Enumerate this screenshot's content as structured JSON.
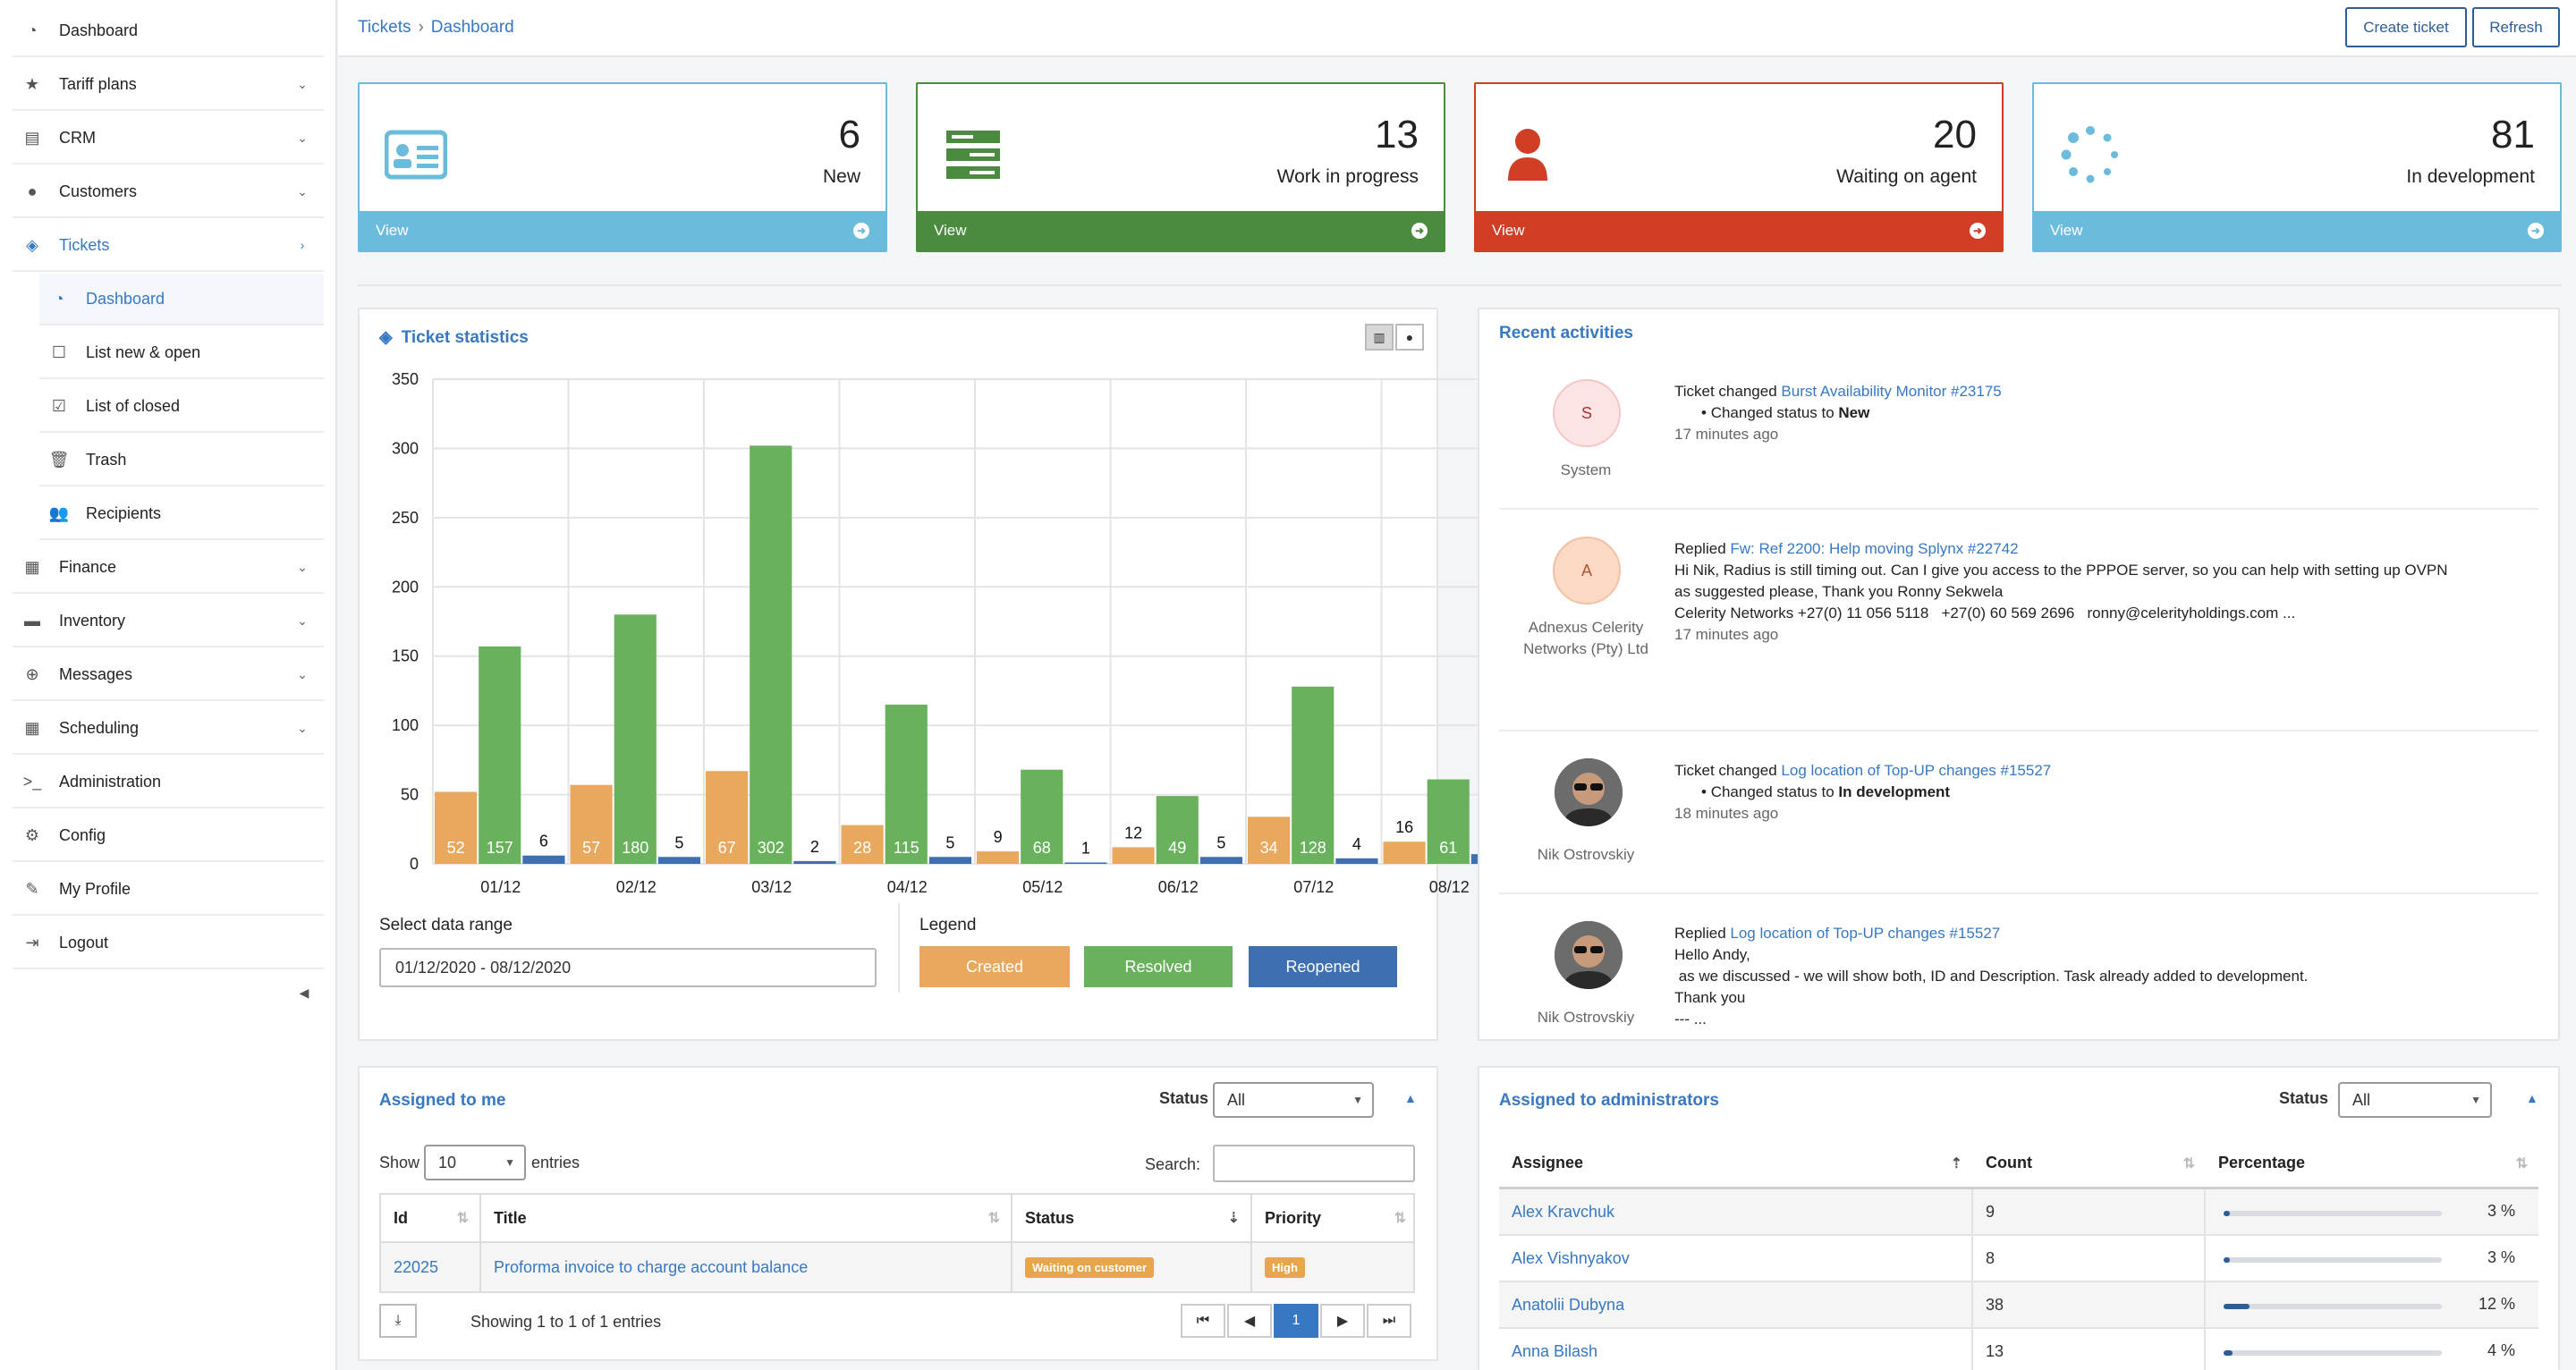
{
  "sidebar": {
    "items": [
      {
        "label": "Dashboard",
        "icon": "dashboard-icon",
        "chevron": false
      },
      {
        "label": "Tariff plans",
        "icon": "star-icon",
        "chevron": true
      },
      {
        "label": "CRM",
        "icon": "crm-icon",
        "chevron": true
      },
      {
        "label": "Customers",
        "icon": "user-icon",
        "chevron": true
      },
      {
        "label": "Tickets",
        "icon": "ticket-icon",
        "chevron": true,
        "active": true
      },
      {
        "label": "Finance",
        "icon": "calculator-icon",
        "chevron": true
      },
      {
        "label": "Inventory",
        "icon": "folder-icon",
        "chevron": true
      },
      {
        "label": "Messages",
        "icon": "globe-icon",
        "chevron": true
      },
      {
        "label": "Scheduling",
        "icon": "calendar-icon",
        "chevron": true
      },
      {
        "label": "Administration",
        "icon": "terminal-icon",
        "chevron": false
      },
      {
        "label": "Config",
        "icon": "gears-icon",
        "chevron": false
      },
      {
        "label": "My Profile",
        "icon": "pencil-icon",
        "chevron": false
      },
      {
        "label": "Logout",
        "icon": "logout-icon",
        "chevron": false
      }
    ],
    "ticket_subitems": [
      {
        "label": "Dashboard",
        "icon": "dashboard-icon",
        "active": true
      },
      {
        "label": "List new & open",
        "icon": "square-icon"
      },
      {
        "label": "List of closed",
        "icon": "checkbox-icon"
      },
      {
        "label": "Trash",
        "icon": "trash-icon"
      },
      {
        "label": "Recipients",
        "icon": "users-icon"
      }
    ]
  },
  "header": {
    "breadcrumb": [
      "Tickets",
      "Dashboard"
    ],
    "create_ticket": "Create ticket",
    "refresh": "Refresh"
  },
  "stats": [
    {
      "count": "6",
      "label": "New",
      "view": "View",
      "color": "#6bbcdc",
      "icon": "id-card-icon"
    },
    {
      "count": "13",
      "label": "Work in progress",
      "view": "View",
      "color": "#4a8b3f",
      "icon": "server-icon"
    },
    {
      "count": "20",
      "label": "Waiting on agent",
      "view": "View",
      "color": "#d03e26",
      "icon": "user-icon"
    },
    {
      "count": "81",
      "label": "In development",
      "view": "View",
      "color": "#6bbcdc",
      "icon": "spinner-icon"
    }
  ],
  "ticket_statistics": {
    "title": "Ticket statistics",
    "date_range_label": "Select data range",
    "date_range_value": "01/12/2020 - 08/12/2020",
    "legend_title": "Legend",
    "legend": [
      {
        "label": "Created",
        "color": "#e8a95e"
      },
      {
        "label": "Resolved",
        "color": "#6ab15e"
      },
      {
        "label": "Reopened",
        "color": "#3e6fb0"
      }
    ]
  },
  "chart_data": {
    "type": "bar",
    "categories": [
      "01/12",
      "02/12",
      "03/12",
      "04/12",
      "05/12",
      "06/12",
      "07/12",
      "08/12"
    ],
    "series": [
      {
        "name": "Created",
        "values": [
          52,
          57,
          67,
          28,
          9,
          12,
          34,
          16
        ]
      },
      {
        "name": "Resolved",
        "values": [
          157,
          180,
          302,
          115,
          68,
          49,
          128,
          61
        ]
      },
      {
        "name": "Reopened",
        "values": [
          6,
          5,
          2,
          5,
          1,
          5,
          4,
          7
        ]
      }
    ],
    "ylim": [
      0,
      350
    ],
    "yticks": [
      0,
      50,
      100,
      150,
      200,
      250,
      300,
      350
    ],
    "grid": true
  },
  "recent_activities": {
    "title": "Recent activities",
    "items": [
      {
        "initial": "S",
        "who": "System",
        "action": "Ticket changed",
        "link": "Burst Availability Monitor #23175",
        "lines": [],
        "bullet_pre": "Changed status to",
        "bullet_bold": "New",
        "time": "17 minutes ago"
      },
      {
        "initial": "A",
        "who": "Adnexus Celerity Networks (Pty) Ltd",
        "action": "Replied",
        "link": "Fw: Ref 2200: Help moving Splynx #22742",
        "lines": [
          "Hi Nik, Radius is still timing out. Can I give you access to the PPPOE server, so you can help with setting up OVPN",
          "as suggested please, Thank you Ronny Sekwela",
          "Celerity Networks +27(0) 11 056 5118   +27(0) 60 569 2696   ronny@celerityholdings.com ..."
        ],
        "time": "17 minutes ago"
      },
      {
        "initial": "",
        "who": "Nik Ostrovskiy",
        "action": "Ticket changed",
        "link": "Log location of Top-UP changes #15527",
        "lines": [],
        "bullet_pre": "Changed status to",
        "bullet_bold": "In development",
        "time": "18 minutes ago"
      },
      {
        "initial": "",
        "who": "Nik Ostrovskiy",
        "action": "Replied",
        "link": "Log location of Top-UP changes #15527",
        "lines": [
          "Hello Andy,",
          " as we discussed - we will show both, ID and Description. Task already added to development.",
          "Thank you",
          "--- ..."
        ],
        "time": ""
      }
    ]
  },
  "assigned_to_me": {
    "title": "Assigned to me",
    "status_label": "Status",
    "status_value": "All",
    "show_label": "Show",
    "entries_value": "10",
    "entries_label": "entries",
    "search_label": "Search:",
    "search_value": "",
    "columns": [
      "Id",
      "Title",
      "Status",
      "Priority"
    ],
    "rows": [
      {
        "id": "22025",
        "title": "Proforma invoice to charge account balance",
        "status": "Waiting on customer",
        "priority": "High"
      }
    ],
    "info": "Showing 1 to 1 of 1 entries",
    "page": "1"
  },
  "assigned_to_admins": {
    "title": "Assigned to administrators",
    "status_label": "Status",
    "status_value": "All",
    "columns": [
      "Assignee",
      "Count",
      "Percentage"
    ],
    "rows": [
      {
        "name": "Alex Kravchuk",
        "count": "9",
        "percent": "3 %",
        "fraction": 0.03
      },
      {
        "name": "Alex Vishnyakov",
        "count": "8",
        "percent": "3 %",
        "fraction": 0.03
      },
      {
        "name": "Anatolii Dubyna",
        "count": "38",
        "percent": "12 %",
        "fraction": 0.12
      },
      {
        "name": "Anna Bilash",
        "count": "13",
        "percent": "4 %",
        "fraction": 0.04
      }
    ]
  }
}
